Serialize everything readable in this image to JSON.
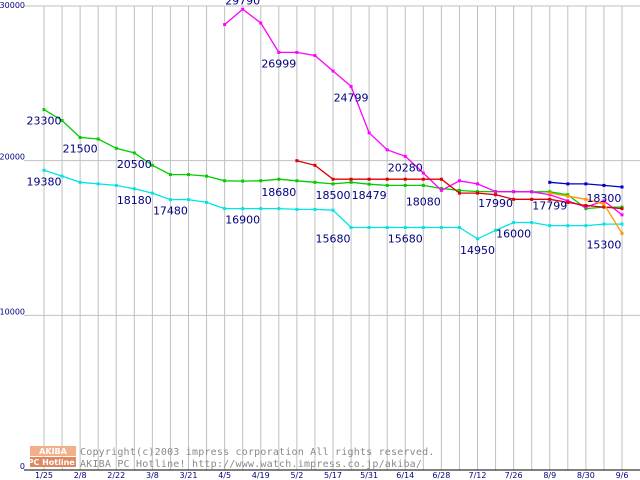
{
  "chart_data": {
    "type": "line",
    "title": "",
    "xlabel": "",
    "ylabel": "",
    "ylim": [
      0,
      30000
    ],
    "grid": true,
    "y_ticks": [
      0,
      10000,
      20000,
      30000
    ],
    "x": [
      "1/25",
      "2/1",
      "2/8",
      "2/15",
      "2/22",
      "3/1",
      "3/8",
      "3/15",
      "3/21",
      "3/28",
      "4/5",
      "4/12",
      "4/19",
      "4/26",
      "5/2",
      "5/10",
      "5/17",
      "5/24",
      "5/31",
      "6/7",
      "6/14",
      "6/21",
      "6/28",
      "7/5",
      "7/12",
      "7/19",
      "7/26",
      "8/2",
      "8/9",
      "8/16",
      "8/23",
      "8/30",
      "9/6"
    ],
    "x_tick_labels": [
      "1/25",
      "",
      "2/8",
      "",
      "2/22",
      "",
      "3/8",
      "",
      "3/21",
      "",
      "4/5",
      "",
      "4/19",
      "",
      "5/2",
      "",
      "5/17",
      "",
      "5/31",
      "",
      "6/14",
      "",
      "6/28",
      "",
      "7/12",
      "",
      "7/26",
      "",
      "8/9",
      "",
      "8/30",
      "",
      "9/6"
    ],
    "series": [
      {
        "name": "series-green",
        "color": "#00cc00",
        "values": [
          23300,
          22600,
          21500,
          21400,
          20800,
          20500,
          19700,
          19100,
          19100,
          19000,
          18700,
          18680,
          18700,
          18800,
          18700,
          18600,
          18500,
          18600,
          18479,
          18400,
          18400,
          18400,
          18200,
          18080,
          18000,
          18000,
          17990,
          17990,
          17990,
          17799,
          16900,
          17000,
          17000
        ]
      },
      {
        "name": "series-cyan",
        "color": "#00e5e5",
        "values": [
          19380,
          19000,
          18600,
          18500,
          18400,
          18180,
          17900,
          17480,
          17480,
          17300,
          16900,
          16900,
          16900,
          16900,
          16850,
          16850,
          16800,
          15680,
          15680,
          15680,
          15680,
          15680,
          15680,
          15680,
          14950,
          15500,
          16000,
          16000,
          15800,
          15800,
          15800,
          15900,
          15900
        ]
      },
      {
        "name": "series-magenta",
        "color": "#ff00ff",
        "values": [
          null,
          null,
          null,
          null,
          null,
          null,
          null,
          null,
          null,
          null,
          28800,
          29790,
          28900,
          27000,
          26999,
          26800,
          25800,
          24799,
          21800,
          20700,
          20280,
          19200,
          18080,
          18700,
          18500,
          18000,
          18000,
          17990,
          17799,
          17400,
          17000,
          17400,
          16500
        ]
      },
      {
        "name": "series-red",
        "color": "#dd0000",
        "values": [
          null,
          null,
          null,
          null,
          null,
          null,
          null,
          null,
          null,
          null,
          null,
          null,
          null,
          null,
          20000,
          19700,
          18800,
          18800,
          18800,
          18800,
          18800,
          18800,
          18800,
          17900,
          17900,
          17800,
          17500,
          17500,
          17500,
          17300,
          17100,
          17000,
          16900
        ]
      },
      {
        "name": "series-blue",
        "color": "#0000cc",
        "values": [
          null,
          null,
          null,
          null,
          null,
          null,
          null,
          null,
          null,
          null,
          null,
          null,
          null,
          null,
          null,
          null,
          null,
          null,
          null,
          null,
          null,
          null,
          null,
          null,
          null,
          null,
          null,
          null,
          18600,
          18500,
          18500,
          18400,
          18300
        ]
      },
      {
        "name": "series-orange",
        "color": "#ff9900",
        "values": [
          null,
          null,
          null,
          null,
          null,
          null,
          null,
          null,
          null,
          null,
          null,
          null,
          null,
          null,
          null,
          null,
          null,
          null,
          null,
          null,
          null,
          null,
          null,
          null,
          null,
          null,
          null,
          null,
          17900,
          17700,
          17500,
          17200,
          15300
        ]
      }
    ],
    "annotations": [
      {
        "text": "23300",
        "x": "1/25",
        "value": 23300,
        "anchor": "below"
      },
      {
        "text": "21500",
        "x": "2/8",
        "value": 21500,
        "anchor": "below"
      },
      {
        "text": "20500",
        "x": "3/1",
        "value": 20500,
        "anchor": "below"
      },
      {
        "text": "19380",
        "x": "1/25",
        "value": 19380,
        "anchor": "below"
      },
      {
        "text": "18180",
        "x": "3/1",
        "value": 18180,
        "anchor": "below"
      },
      {
        "text": "17480",
        "x": "3/15",
        "value": 17480,
        "anchor": "below"
      },
      {
        "text": "16900",
        "x": "4/12",
        "value": 16900,
        "anchor": "below"
      },
      {
        "text": "18680",
        "x": "4/26",
        "value": 18680,
        "anchor": "below"
      },
      {
        "text": "29790",
        "x": "4/12",
        "value": 29790,
        "anchor": "above"
      },
      {
        "text": "26999",
        "x": "4/26",
        "value": 26999,
        "anchor": "below"
      },
      {
        "text": "24799",
        "x": "5/24",
        "value": 24799,
        "anchor": "below"
      },
      {
        "text": "20280",
        "x": "6/14",
        "value": 20280,
        "anchor": "below"
      },
      {
        "text": "18500",
        "x": "5/17",
        "value": 18500,
        "anchor": "below"
      },
      {
        "text": "18479",
        "x": "5/31",
        "value": 18479,
        "anchor": "below"
      },
      {
        "text": "15680",
        "x": "5/17",
        "value": 15680,
        "anchor": "below"
      },
      {
        "text": "15680",
        "x": "6/14",
        "value": 15680,
        "anchor": "below"
      },
      {
        "text": "18080",
        "x": "6/21",
        "value": 18080,
        "anchor": "below"
      },
      {
        "text": "17990",
        "x": "7/19",
        "value": 17990,
        "anchor": "below"
      },
      {
        "text": "14950",
        "x": "7/12",
        "value": 14950,
        "anchor": "below"
      },
      {
        "text": "16000",
        "x": "7/26",
        "value": 16000,
        "anchor": "below"
      },
      {
        "text": "17799",
        "x": "8/9",
        "value": 17799,
        "anchor": "below"
      },
      {
        "text": "18300",
        "x": "8/30",
        "value": 18300,
        "anchor": "below"
      },
      {
        "text": "15300",
        "x": "8/30",
        "value": 15300,
        "anchor": "below"
      }
    ]
  },
  "watermark": {
    "logo_top": "AKIBA",
    "logo_bottom": "PC Hotline!",
    "line1": "Copyright(c)2003 impress corporation All rights reserved.",
    "line2": "AKIBA PC Hotline!  http://www.watch.impress.co.jp/akiba/"
  }
}
